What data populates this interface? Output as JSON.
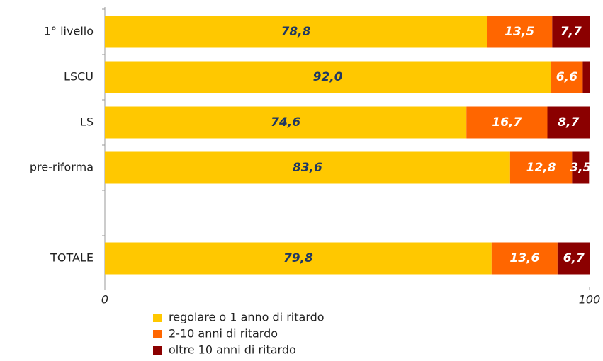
{
  "chart_data": {
    "type": "stacked_barh",
    "categories": [
      "1° livello",
      "LSCU",
      "LS",
      "pre-riforma",
      null,
      "TOTALE"
    ],
    "series": [
      {
        "name": "regolare o 1 anno di ritardo",
        "color": "#FFC800",
        "values": [
          78.8,
          92.0,
          74.6,
          83.6,
          null,
          79.8
        ],
        "value_labels": [
          "78,8",
          "92,0",
          "74,6",
          "83,6",
          null,
          "79,8"
        ]
      },
      {
        "name": "2-10 anni di ritardo",
        "color": "#FF6600",
        "values": [
          13.5,
          6.6,
          16.7,
          12.8,
          null,
          13.6
        ],
        "value_labels": [
          "13,5",
          "6,6",
          "16,7",
          "12,8",
          null,
          "13,6"
        ]
      },
      {
        "name": "oltre 10 anni di ritardo",
        "color": "#8B0000",
        "values": [
          7.7,
          1.4,
          8.7,
          3.5,
          null,
          6.7
        ],
        "value_labels": [
          "7,7",
          null,
          "8,7",
          "3,5",
          null,
          "6,7"
        ]
      }
    ],
    "xlim": [
      0,
      100
    ],
    "xticks": [
      0,
      100
    ],
    "legend": "bottom"
  }
}
